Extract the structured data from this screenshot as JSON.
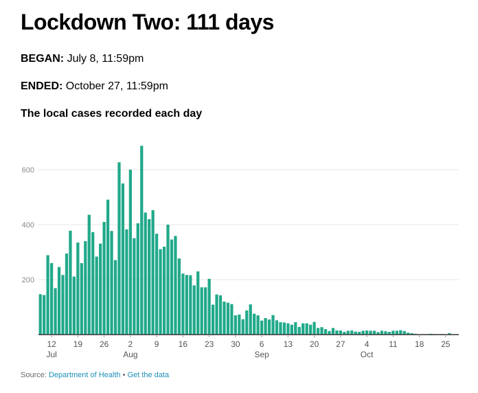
{
  "title": "Lockdown Two: 111 days",
  "began": {
    "label": "BEGAN:",
    "value": "July 8, 11:59pm"
  },
  "ended": {
    "label": "ENDED:",
    "value": "October 27, 11:59pm"
  },
  "subtitle": "The local cases recorded each day",
  "source": {
    "label": "Source:",
    "link1": "Department of Health",
    "separator": "•",
    "link2": "Get the data"
  },
  "colors": {
    "bar": "#21a98a",
    "grid": "#e6e6e6",
    "axis": "#333333"
  },
  "chart_data": {
    "type": "bar",
    "title": "The local cases recorded each day",
    "xlabel": "",
    "ylabel": "",
    "ylim": [
      0,
      700
    ],
    "yticks": [
      200,
      400,
      600
    ],
    "start_date": "Jul 9",
    "x_ticks": [
      {
        "label": "12",
        "index": 3
      },
      {
        "label": "19",
        "index": 10
      },
      {
        "label": "26",
        "index": 17
      },
      {
        "label": "2",
        "index": 24
      },
      {
        "label": "9",
        "index": 31
      },
      {
        "label": "16",
        "index": 38
      },
      {
        "label": "23",
        "index": 45
      },
      {
        "label": "30",
        "index": 52
      },
      {
        "label": "6",
        "index": 59
      },
      {
        "label": "13",
        "index": 66
      },
      {
        "label": "20",
        "index": 73
      },
      {
        "label": "27",
        "index": 80
      },
      {
        "label": "4",
        "index": 87
      },
      {
        "label": "11",
        "index": 94
      },
      {
        "label": "18",
        "index": 101
      },
      {
        "label": "25",
        "index": 108
      }
    ],
    "months": [
      {
        "label": "Jul",
        "index": 3
      },
      {
        "label": "Aug",
        "index": 24
      },
      {
        "label": "Sep",
        "index": 59
      },
      {
        "label": "Oct",
        "index": 87
      }
    ],
    "values": [
      147,
      144,
      289,
      260,
      169,
      246,
      217,
      295,
      378,
      211,
      335,
      260,
      340,
      436,
      373,
      284,
      331,
      410,
      491,
      377,
      271,
      627,
      550,
      383,
      600,
      351,
      405,
      687,
      444,
      420,
      453,
      367,
      311,
      320,
      400,
      346,
      359,
      277,
      222,
      217,
      216,
      179,
      230,
      172,
      172,
      203,
      109,
      146,
      143,
      120,
      116,
      111,
      70,
      73,
      56,
      88,
      110,
      76,
      70,
      51,
      60,
      55,
      71,
      52,
      45,
      44,
      41,
      36,
      45,
      28,
      41,
      41,
      36,
      46,
      24,
      27,
      20,
      13,
      24,
      15,
      15,
      10,
      14,
      15,
      11,
      10,
      14,
      15,
      14,
      14,
      9,
      14,
      12,
      10,
      14,
      14,
      16,
      13,
      7,
      5,
      3,
      1,
      0,
      1,
      3,
      2,
      1,
      2,
      0,
      5,
      1,
      0
    ]
  }
}
